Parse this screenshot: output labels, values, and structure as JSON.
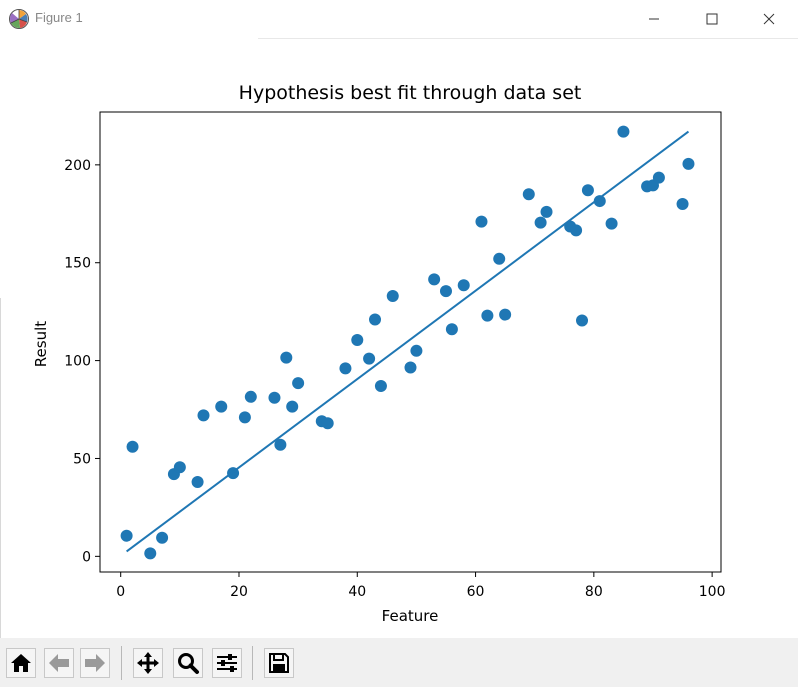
{
  "window": {
    "title": "Figure 1",
    "app_icon": "matplotlib-logo-icon",
    "controls": [
      "minimize-icon",
      "maximize-icon",
      "close-icon"
    ]
  },
  "toolbar": {
    "buttons": [
      "home-icon",
      "back-arrow-icon",
      "forward-arrow-icon",
      "pan-icon",
      "zoom-icon",
      "configure-subplots-icon",
      "save-icon"
    ]
  },
  "colors": {
    "series": "#1f77b4"
  },
  "chart_data": {
    "type": "scatter",
    "title": "Hypothesis best fit through data set",
    "xlabel": "Feature",
    "ylabel": "Result",
    "xlim": [
      -3.5,
      101.5
    ],
    "ylim": [
      -8,
      227
    ],
    "xticks": [
      0,
      20,
      40,
      60,
      80,
      100
    ],
    "xtick_labels": [
      "0",
      "20",
      "40",
      "60",
      "80",
      "100"
    ],
    "yticks": [
      0,
      50,
      100,
      150,
      200
    ],
    "ytick_labels": [
      "0",
      "50",
      "100",
      "150",
      "200"
    ],
    "grid": false,
    "legend": null,
    "series": [
      {
        "kind": "scatter",
        "color": "#1f77b4",
        "points": [
          [
            1,
            10.5
          ],
          [
            2,
            56
          ],
          [
            5,
            1.5
          ],
          [
            7,
            9.5
          ],
          [
            9,
            42
          ],
          [
            10,
            45.5
          ],
          [
            13,
            38
          ],
          [
            14,
            72
          ],
          [
            17,
            76.5
          ],
          [
            19,
            42.5
          ],
          [
            21,
            71
          ],
          [
            22,
            81.5
          ],
          [
            26,
            81
          ],
          [
            27,
            57
          ],
          [
            28,
            101.5
          ],
          [
            29,
            76.5
          ],
          [
            30,
            88.5
          ],
          [
            34,
            69
          ],
          [
            35,
            68
          ],
          [
            38,
            96
          ],
          [
            40,
            110.5
          ],
          [
            42,
            101
          ],
          [
            43,
            121
          ],
          [
            44,
            87
          ],
          [
            46,
            133
          ],
          [
            49,
            96.5
          ],
          [
            50,
            105
          ],
          [
            53,
            141.5
          ],
          [
            55,
            135.5
          ],
          [
            56,
            116
          ],
          [
            58,
            138.5
          ],
          [
            61,
            171
          ],
          [
            62,
            123
          ],
          [
            64,
            152
          ],
          [
            65,
            123.5
          ],
          [
            69,
            185
          ],
          [
            71,
            170.5
          ],
          [
            72,
            176
          ],
          [
            76,
            168.5
          ],
          [
            77,
            166.5
          ],
          [
            78,
            120.5
          ],
          [
            79,
            187
          ],
          [
            81,
            181.5
          ],
          [
            83,
            170
          ],
          [
            85,
            217
          ],
          [
            89,
            189
          ],
          [
            90,
            189.5
          ],
          [
            91,
            193.5
          ],
          [
            95,
            180
          ],
          [
            96,
            200.5
          ]
        ]
      },
      {
        "kind": "line",
        "color": "#1f77b4",
        "x": [
          1,
          96
        ],
        "y": [
          2.5,
          217
        ]
      }
    ]
  }
}
